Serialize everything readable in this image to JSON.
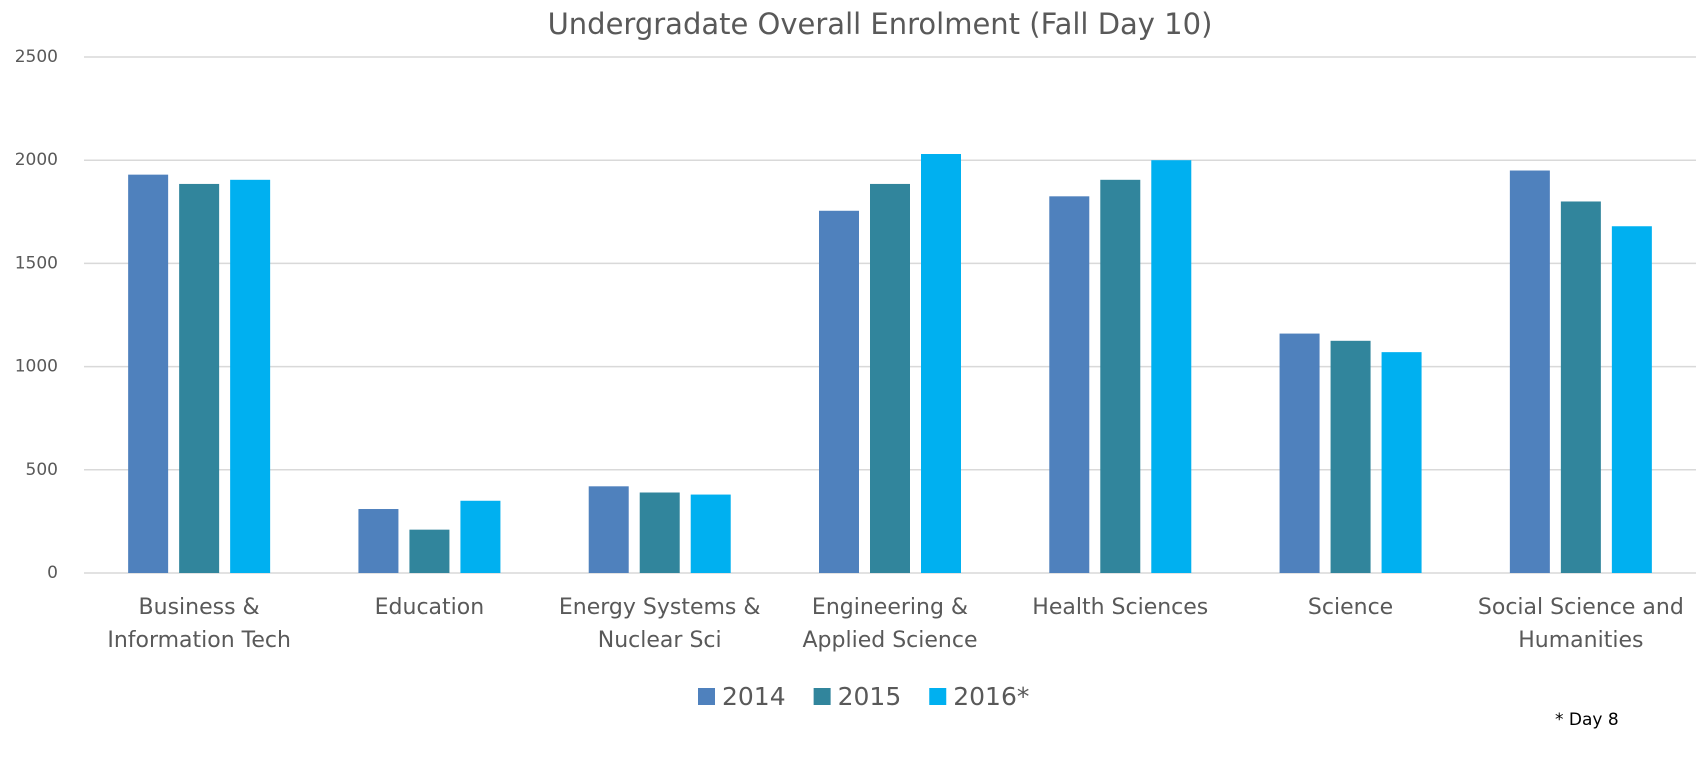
{
  "chart_data": {
    "type": "bar",
    "title": "Undergradate Overall Enrolment (Fall Day 10)",
    "categories": [
      "Business &\nInformation Tech",
      "Education",
      "Energy Systems &\nNuclear Sci",
      "Engineering &\nApplied Science",
      "Health Sciences",
      "Science",
      "Social Science and\nHumanities"
    ],
    "series": [
      {
        "name": "2014",
        "color": "#4f81bd",
        "values": [
          1930,
          310,
          420,
          1755,
          1825,
          1160,
          1950
        ]
      },
      {
        "name": "2015",
        "color": "#31859c",
        "values": [
          1885,
          210,
          390,
          1885,
          1905,
          1125,
          1800
        ]
      },
      {
        "name": "2016*",
        "color": "#00b0f0",
        "values": [
          1905,
          350,
          380,
          2030,
          2000,
          1070,
          1680
        ]
      }
    ],
    "ylim": [
      0,
      2500
    ],
    "yticks": [
      0,
      500,
      1000,
      1500,
      2000,
      2500
    ],
    "grid": true,
    "legend": "bottom",
    "annotation": "* Day 8"
  }
}
